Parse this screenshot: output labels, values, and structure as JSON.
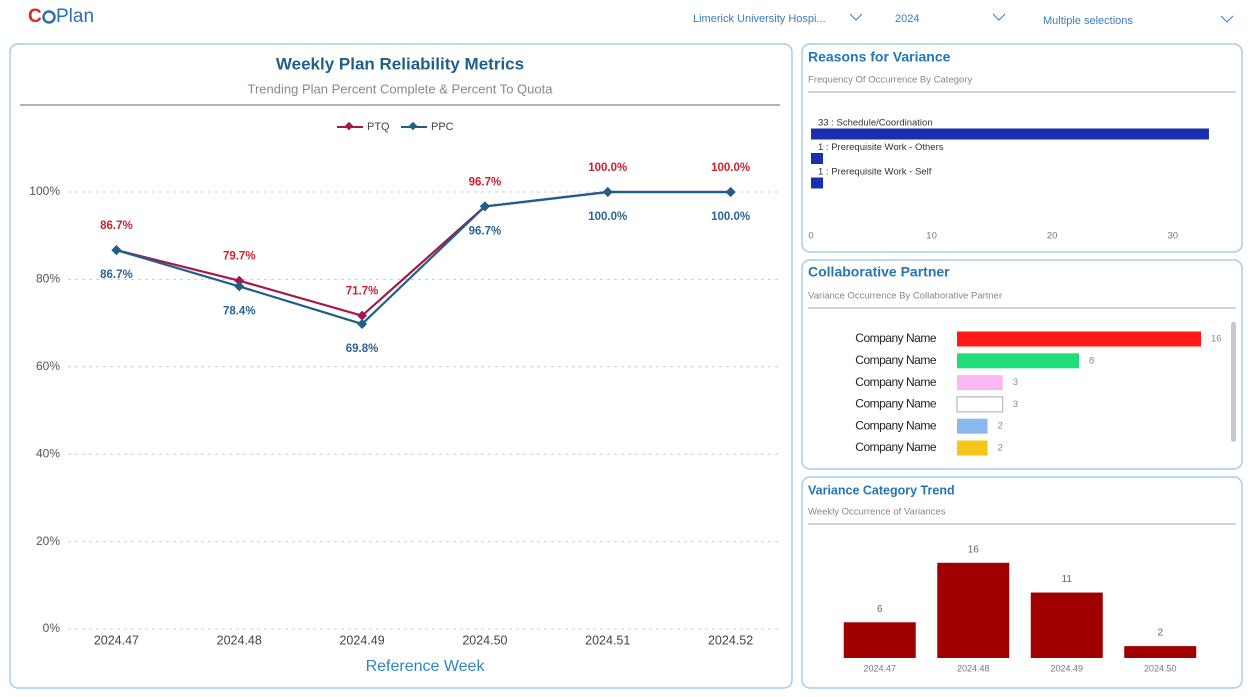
{
  "header": {
    "logo_left": "C",
    "logo_right": "Plan",
    "filters": [
      "Limerick University Hospi...",
      "2024",
      "Multiple selections"
    ]
  },
  "chart_data": [
    {
      "type": "line",
      "title": "Weekly Plan Reliability Metrics",
      "subtitle": "Trending Plan Percent Complete & Percent To Quota",
      "x_label": "Reference Week",
      "categories": [
        "2024.47",
        "2024.48",
        "2024.49",
        "2024.50",
        "2024.51",
        "2024.52"
      ],
      "series": [
        {
          "name": "PTQ",
          "color": "#a3194b",
          "label_color": "#d0202e",
          "values": [
            86.7,
            79.7,
            71.7,
            96.7,
            100,
            100
          ],
          "value_labels": [
            "86.7%",
            "79.7%",
            "71.7%",
            "96.7%",
            "100.0%",
            "100.0%"
          ]
        },
        {
          "name": "PPC",
          "color": "#1f5f8b",
          "label_color": "#2a6496",
          "values": [
            86.7,
            78.4,
            69.8,
            96.7,
            100,
            100
          ],
          "value_labels": [
            "86.7%",
            "78.4%",
            "69.8%",
            "96.7%",
            "100.0%",
            "100.0%"
          ]
        }
      ],
      "ylim": [
        0,
        120
      ],
      "yticks": [
        {
          "value": 0,
          "label": "0%"
        },
        {
          "value": 20,
          "label": "20%"
        },
        {
          "value": 40,
          "label": "40%"
        },
        {
          "value": 60,
          "label": "60%"
        },
        {
          "value": 80,
          "label": "80%"
        },
        {
          "value": 100,
          "label": "100%"
        }
      ],
      "grid": true,
      "legend": "top"
    },
    {
      "type": "hbar",
      "title": "Reasons for Variance",
      "subtitle": "Frequency Of Occurrence By Category",
      "categories": [
        "33 : Schedule/Coordination",
        "1 : Prerequisite Work - Others",
        "1 : Prerequisite Work - Self"
      ],
      "values": [
        33,
        1,
        1
      ],
      "color": "#1a2fb0",
      "xlim": [
        0,
        34
      ],
      "xticks": [
        0,
        10,
        20,
        30
      ]
    },
    {
      "type": "hbar",
      "title": "Collaborative Partner",
      "subtitle": "Variance Occurrence  By Collaborative Partner",
      "categories": [
        "Company Name",
        "Company Name",
        "Company Name",
        "Company Name",
        "Company Name",
        "Company Name"
      ],
      "values": [
        16,
        8,
        3,
        3,
        2,
        2
      ],
      "colors": [
        "#ff1a1a",
        "#22dd77",
        "#f9b8f4",
        "#ffffff",
        "#8ab8f0",
        "#f5c518"
      ],
      "xlim": [
        0,
        16
      ]
    },
    {
      "type": "bar",
      "title": "Variance Category Trend",
      "subtitle": "Weekly Occurrence of Variances",
      "categories": [
        "2024.47",
        "2024.48",
        "2024.49",
        "2024.50"
      ],
      "values": [
        6,
        16,
        11,
        2
      ],
      "color": "#a00000",
      "ylim": [
        0,
        20
      ]
    }
  ]
}
